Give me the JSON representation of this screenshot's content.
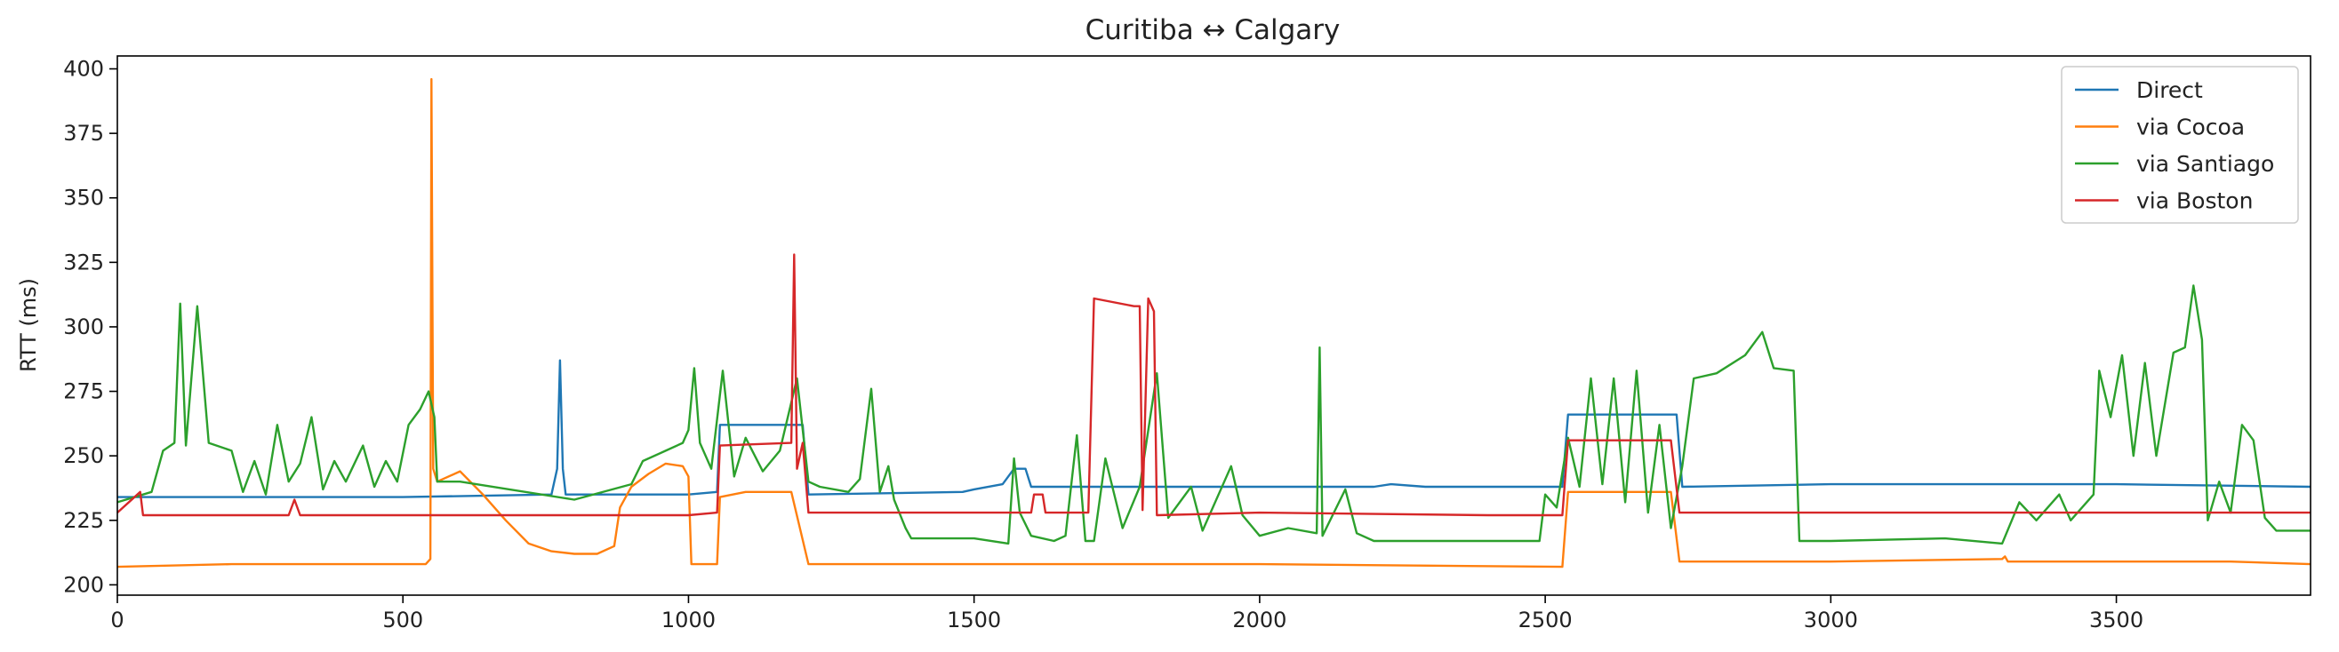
{
  "chart_data": {
    "type": "line",
    "title": "Curitiba ↔ Calgary",
    "xlabel": "",
    "ylabel": "RTT (ms)",
    "xlim": [
      0,
      3840
    ],
    "ylim": [
      196,
      405
    ],
    "xticks": [
      0,
      500,
      1000,
      1500,
      2000,
      2500,
      3000,
      3500
    ],
    "yticks": [
      200,
      225,
      250,
      275,
      300,
      325,
      350,
      375,
      400
    ],
    "grid": false,
    "legend": "top-right",
    "series": [
      {
        "name": "Direct",
        "color": "#1f77b4",
        "points": [
          [
            0,
            234
          ],
          [
            500,
            234
          ],
          [
            760,
            235
          ],
          [
            770,
            245
          ],
          [
            775,
            287
          ],
          [
            780,
            245
          ],
          [
            785,
            235
          ],
          [
            1000,
            235
          ],
          [
            1050,
            236
          ],
          [
            1055,
            262
          ],
          [
            1200,
            262
          ],
          [
            1210,
            235
          ],
          [
            1480,
            236
          ],
          [
            1500,
            237
          ],
          [
            1550,
            239
          ],
          [
            1570,
            245
          ],
          [
            1590,
            245
          ],
          [
            1600,
            238
          ],
          [
            2000,
            238
          ],
          [
            2200,
            238
          ],
          [
            2230,
            239
          ],
          [
            2290,
            238
          ],
          [
            2400,
            238
          ],
          [
            2530,
            238
          ],
          [
            2540,
            266
          ],
          [
            2730,
            266
          ],
          [
            2740,
            238
          ],
          [
            3000,
            239
          ],
          [
            3500,
            239
          ],
          [
            3840,
            238
          ]
        ]
      },
      {
        "name": "via Cocoa",
        "color": "#ff7f0e",
        "points": [
          [
            0,
            207
          ],
          [
            200,
            208
          ],
          [
            540,
            208
          ],
          [
            548,
            210
          ],
          [
            550,
            396
          ],
          [
            553,
            245
          ],
          [
            560,
            240
          ],
          [
            600,
            244
          ],
          [
            640,
            235
          ],
          [
            680,
            225
          ],
          [
            720,
            216
          ],
          [
            760,
            213
          ],
          [
            800,
            212
          ],
          [
            840,
            212
          ],
          [
            870,
            215
          ],
          [
            880,
            230
          ],
          [
            900,
            238
          ],
          [
            930,
            243
          ],
          [
            960,
            247
          ],
          [
            990,
            246
          ],
          [
            1000,
            242
          ],
          [
            1005,
            208
          ],
          [
            1050,
            208
          ],
          [
            1055,
            234
          ],
          [
            1100,
            236
          ],
          [
            1180,
            236
          ],
          [
            1210,
            208
          ],
          [
            1500,
            208
          ],
          [
            2000,
            208
          ],
          [
            2530,
            207
          ],
          [
            2540,
            236
          ],
          [
            2720,
            236
          ],
          [
            2735,
            209
          ],
          [
            3000,
            209
          ],
          [
            3300,
            210
          ],
          [
            3305,
            211
          ],
          [
            3310,
            209
          ],
          [
            3700,
            209
          ],
          [
            3840,
            208
          ]
        ]
      },
      {
        "name": "via Santiago",
        "color": "#2ca02c",
        "points": [
          [
            0,
            232
          ],
          [
            60,
            236
          ],
          [
            80,
            252
          ],
          [
            100,
            255
          ],
          [
            110,
            309
          ],
          [
            120,
            254
          ],
          [
            140,
            308
          ],
          [
            160,
            255
          ],
          [
            200,
            252
          ],
          [
            220,
            236
          ],
          [
            240,
            248
          ],
          [
            260,
            235
          ],
          [
            280,
            262
          ],
          [
            300,
            240
          ],
          [
            320,
            247
          ],
          [
            340,
            265
          ],
          [
            360,
            237
          ],
          [
            380,
            248
          ],
          [
            400,
            240
          ],
          [
            430,
            254
          ],
          [
            450,
            238
          ],
          [
            470,
            248
          ],
          [
            490,
            240
          ],
          [
            510,
            262
          ],
          [
            530,
            268
          ],
          [
            545,
            275
          ],
          [
            555,
            265
          ],
          [
            560,
            240
          ],
          [
            600,
            240
          ],
          [
            800,
            233
          ],
          [
            900,
            239
          ],
          [
            920,
            248
          ],
          [
            960,
            252
          ],
          [
            990,
            255
          ],
          [
            1000,
            260
          ],
          [
            1010,
            284
          ],
          [
            1020,
            255
          ],
          [
            1040,
            245
          ],
          [
            1060,
            283
          ],
          [
            1080,
            242
          ],
          [
            1100,
            257
          ],
          [
            1130,
            244
          ],
          [
            1160,
            252
          ],
          [
            1190,
            280
          ],
          [
            1210,
            240
          ],
          [
            1230,
            238
          ],
          [
            1280,
            236
          ],
          [
            1300,
            241
          ],
          [
            1320,
            276
          ],
          [
            1335,
            236
          ],
          [
            1350,
            246
          ],
          [
            1360,
            233
          ],
          [
            1380,
            222
          ],
          [
            1390,
            218
          ],
          [
            1500,
            218
          ],
          [
            1560,
            216
          ],
          [
            1570,
            249
          ],
          [
            1580,
            228
          ],
          [
            1600,
            219
          ],
          [
            1640,
            217
          ],
          [
            1660,
            219
          ],
          [
            1680,
            258
          ],
          [
            1695,
            217
          ],
          [
            1710,
            217
          ],
          [
            1730,
            249
          ],
          [
            1760,
            222
          ],
          [
            1790,
            238
          ],
          [
            1820,
            282
          ],
          [
            1840,
            226
          ],
          [
            1880,
            238
          ],
          [
            1900,
            221
          ],
          [
            1950,
            246
          ],
          [
            1970,
            227
          ],
          [
            2000,
            219
          ],
          [
            2050,
            222
          ],
          [
            2100,
            220
          ],
          [
            2105,
            292
          ],
          [
            2110,
            219
          ],
          [
            2150,
            237
          ],
          [
            2170,
            220
          ],
          [
            2200,
            217
          ],
          [
            2300,
            217
          ],
          [
            2400,
            217
          ],
          [
            2490,
            217
          ],
          [
            2500,
            235
          ],
          [
            2520,
            230
          ],
          [
            2540,
            257
          ],
          [
            2560,
            238
          ],
          [
            2580,
            280
          ],
          [
            2600,
            239
          ],
          [
            2620,
            280
          ],
          [
            2640,
            232
          ],
          [
            2660,
            283
          ],
          [
            2680,
            228
          ],
          [
            2700,
            262
          ],
          [
            2720,
            222
          ],
          [
            2740,
            246
          ],
          [
            2760,
            280
          ],
          [
            2800,
            282
          ],
          [
            2850,
            289
          ],
          [
            2880,
            298
          ],
          [
            2900,
            284
          ],
          [
            2935,
            283
          ],
          [
            2945,
            217
          ],
          [
            3000,
            217
          ],
          [
            3200,
            218
          ],
          [
            3300,
            216
          ],
          [
            3330,
            232
          ],
          [
            3360,
            225
          ],
          [
            3400,
            235
          ],
          [
            3420,
            225
          ],
          [
            3460,
            235
          ],
          [
            3470,
            283
          ],
          [
            3490,
            265
          ],
          [
            3510,
            289
          ],
          [
            3530,
            250
          ],
          [
            3550,
            286
          ],
          [
            3570,
            250
          ],
          [
            3600,
            290
          ],
          [
            3620,
            292
          ],
          [
            3635,
            316
          ],
          [
            3650,
            295
          ],
          [
            3660,
            225
          ],
          [
            3680,
            240
          ],
          [
            3700,
            228
          ],
          [
            3720,
            262
          ],
          [
            3740,
            256
          ],
          [
            3760,
            226
          ],
          [
            3780,
            221
          ],
          [
            3840,
            221
          ]
        ]
      },
      {
        "name": "via Boston",
        "color": "#d62728",
        "points": [
          [
            0,
            228
          ],
          [
            40,
            236
          ],
          [
            45,
            227
          ],
          [
            300,
            227
          ],
          [
            310,
            233
          ],
          [
            320,
            227
          ],
          [
            1000,
            227
          ],
          [
            1050,
            228
          ],
          [
            1055,
            254
          ],
          [
            1180,
            255
          ],
          [
            1185,
            328
          ],
          [
            1190,
            245
          ],
          [
            1200,
            255
          ],
          [
            1210,
            228
          ],
          [
            1600,
            228
          ],
          [
            1605,
            235
          ],
          [
            1620,
            235
          ],
          [
            1625,
            228
          ],
          [
            1700,
            228
          ],
          [
            1710,
            311
          ],
          [
            1780,
            308
          ],
          [
            1790,
            308
          ],
          [
            1795,
            229
          ],
          [
            1805,
            311
          ],
          [
            1815,
            306
          ],
          [
            1820,
            227
          ],
          [
            2000,
            228
          ],
          [
            2400,
            227
          ],
          [
            2500,
            227
          ],
          [
            2530,
            227
          ],
          [
            2540,
            256
          ],
          [
            2720,
            256
          ],
          [
            2735,
            228
          ],
          [
            3000,
            228
          ],
          [
            3500,
            228
          ],
          [
            3840,
            228
          ]
        ]
      }
    ]
  }
}
